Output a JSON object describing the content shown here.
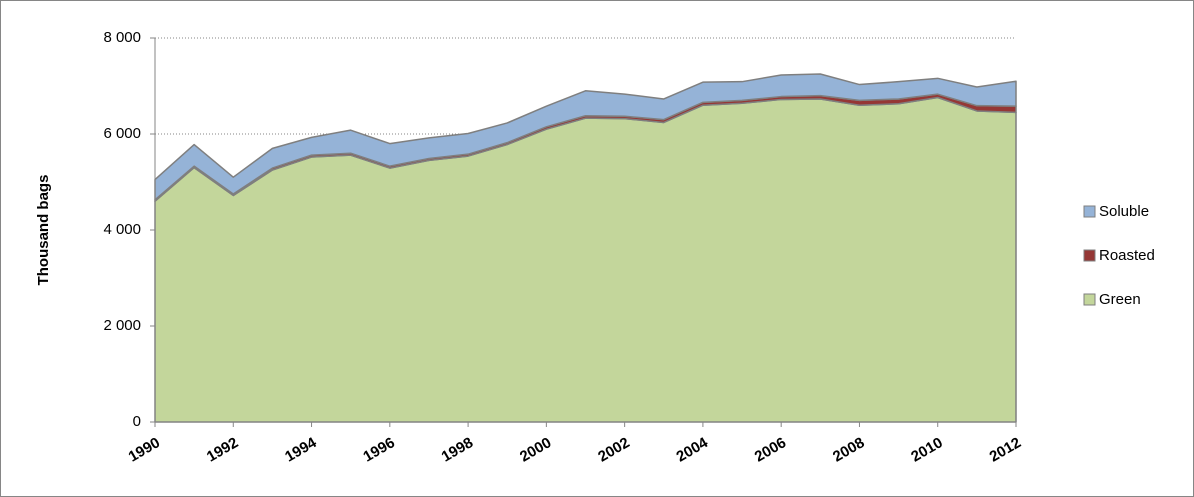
{
  "chart_data": {
    "type": "stacked-area",
    "y_label": "Thousand bags",
    "x": [
      1990,
      1991,
      1992,
      1993,
      1994,
      1995,
      1996,
      1997,
      1998,
      1999,
      2000,
      2001,
      2002,
      2003,
      2004,
      2005,
      2006,
      2007,
      2008,
      2009,
      2010,
      2011,
      2012
    ],
    "xlim": [
      1990,
      2012
    ],
    "xticks": [
      1990,
      1992,
      1994,
      1996,
      1998,
      2000,
      2002,
      2004,
      2006,
      2008,
      2010,
      2012
    ],
    "ylim": [
      0,
      8000
    ],
    "yticks": [
      0,
      {
        "value": 2000,
        "label": "2 000"
      },
      {
        "value": 4000,
        "label": "4 000"
      },
      {
        "value": 6000,
        "label": "6 000"
      },
      {
        "value": 8000,
        "label": "8 000"
      }
    ],
    "grid": true,
    "legend": "right",
    "series": [
      {
        "name": "Green",
        "color": "#c3d69b",
        "values": [
          4600,
          5300,
          4720,
          5250,
          5520,
          5560,
          5290,
          5450,
          5540,
          5780,
          6100,
          6330,
          6320,
          6240,
          6600,
          6640,
          6720,
          6730,
          6600,
          6630,
          6760,
          6480,
          6450
        ]
      },
      {
        "name": "Roasted",
        "color": "#953735",
        "values": [
          30,
          30,
          30,
          40,
          40,
          40,
          40,
          40,
          40,
          40,
          50,
          50,
          50,
          60,
          60,
          60,
          60,
          70,
          100,
          100,
          70,
          110,
          130
        ]
      },
      {
        "name": "Soluble",
        "color": "#95b3d7",
        "values": [
          420,
          450,
          350,
          410,
          370,
          480,
          470,
          430,
          430,
          410,
          430,
          520,
          460,
          430,
          420,
          390,
          450,
          450,
          330,
          360,
          330,
          390,
          520
        ]
      }
    ]
  }
}
